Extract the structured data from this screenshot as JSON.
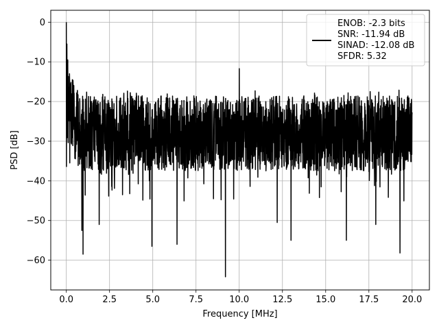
{
  "chart_data": {
    "type": "line",
    "xlabel": "Frequency [MHz]",
    "ylabel": "PSD [dB]",
    "xlim": [
      -0.9,
      21.0
    ],
    "ylim": [
      -67.5,
      3.0
    ],
    "xticks": [
      0.0,
      2.5,
      5.0,
      7.5,
      10.0,
      12.5,
      15.0,
      17.5,
      20.0
    ],
    "xtick_labels": [
      "0.0",
      "2.5",
      "5.0",
      "7.5",
      "10.0",
      "12.5",
      "15.0",
      "17.5",
      "20.0"
    ],
    "yticks": [
      0,
      -10,
      -20,
      -30,
      -40,
      -50,
      -60
    ],
    "ytick_labels": [
      "0",
      "−10",
      "−20",
      "−30",
      "−40",
      "−50",
      "−60"
    ],
    "grid": true,
    "legend_position": "top-right",
    "line_color": "#000000",
    "series": [
      {
        "name": "ENOB: -2.3 bits\nSNR: -11.94 dB\nSINAD: -12.08 dB\nSFDR: 5.32",
        "legend_lines": [
          "ENOB: -2.3 bits",
          "SNR: -11.94 dB",
          "SINAD: -12.08 dB",
          "SFDR: 5.32"
        ],
        "x_range": [
          0.0,
          20.0
        ],
        "noise_band": [
          -35,
          -17
        ],
        "noise_floor_typical": -28,
        "peaks": [
          {
            "x": 0.0,
            "y": 0.0
          },
          {
            "x": 0.03,
            "y": -5.5
          },
          {
            "x": 0.08,
            "y": -9.5
          },
          {
            "x": 0.18,
            "y": -13.0
          },
          {
            "x": 0.35,
            "y": -14.5
          },
          {
            "x": 10.0,
            "y": -11.7
          }
        ],
        "dips": [
          {
            "x": 0.2,
            "y": -35.5
          },
          {
            "x": 0.9,
            "y": -52.5
          },
          {
            "x": 0.97,
            "y": -58.5
          },
          {
            "x": 1.9,
            "y": -51.0
          },
          {
            "x": 4.95,
            "y": -56.5
          },
          {
            "x": 6.4,
            "y": -56.0
          },
          {
            "x": 9.2,
            "y": -64.2
          },
          {
            "x": 12.2,
            "y": -50.5
          },
          {
            "x": 13.0,
            "y": -55.0
          },
          {
            "x": 16.2,
            "y": -55.0
          },
          {
            "x": 17.9,
            "y": -51.0
          },
          {
            "x": 19.3,
            "y": -58.2
          }
        ]
      }
    ]
  }
}
